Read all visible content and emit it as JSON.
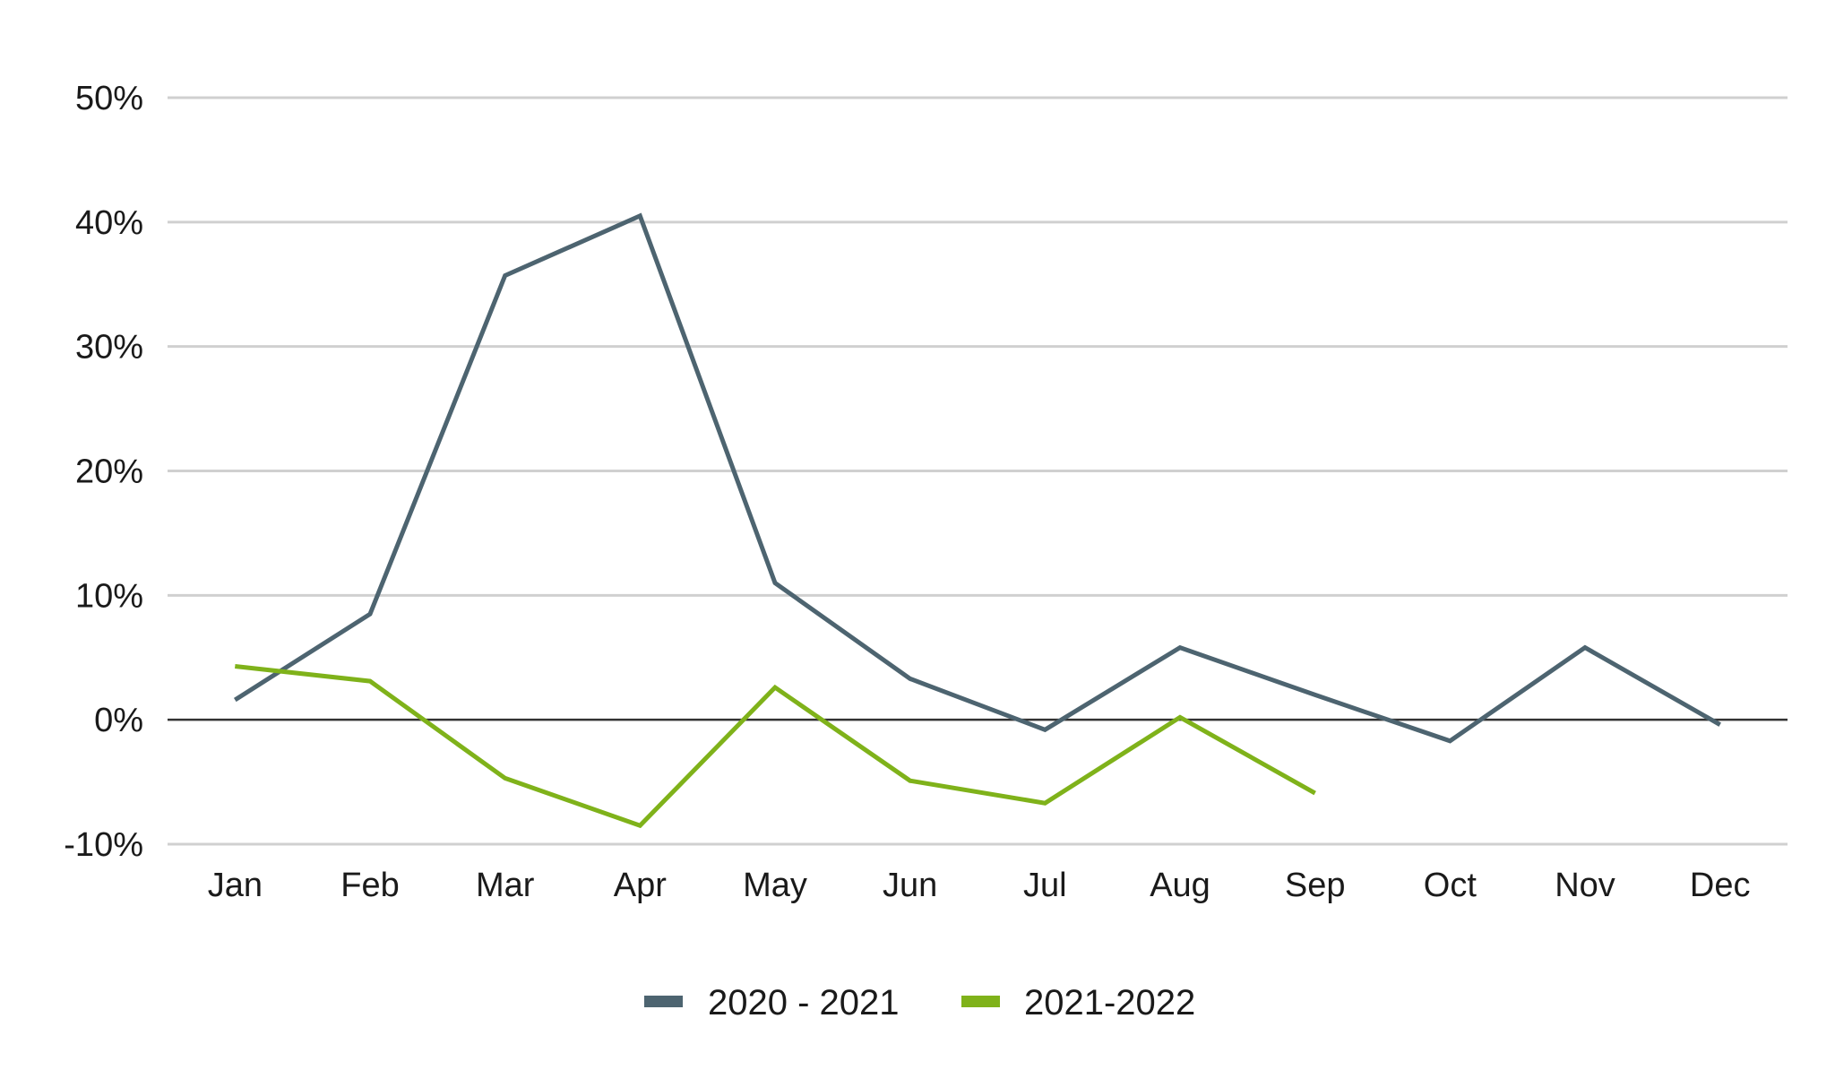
{
  "chart_data": {
    "type": "line",
    "categories": [
      "Jan",
      "Feb",
      "Mar",
      "Apr",
      "May",
      "Jun",
      "Jul",
      "Aug",
      "Sep",
      "Oct",
      "Nov",
      "Dec"
    ],
    "y_ticks": [
      "-10%",
      "0%",
      "10%",
      "20%",
      "30%",
      "40%",
      "50%"
    ],
    "y_tick_values": [
      -10,
      0,
      10,
      20,
      30,
      40,
      50
    ],
    "ylim": [
      -10,
      50
    ],
    "grid": true,
    "legend_position": "bottom-center",
    "series": [
      {
        "name": "2020 - 2021",
        "color": "#4d6470",
        "values": [
          1.6,
          8.5,
          35.7,
          40.5,
          11.0,
          3.3,
          -0.8,
          5.8,
          2.0,
          -1.7,
          5.8,
          -0.4
        ]
      },
      {
        "name": "2021-2022",
        "color": "#7fb21a",
        "values": [
          4.3,
          3.1,
          -4.7,
          -8.5,
          2.6,
          -4.9,
          -6.7,
          0.2,
          -5.9,
          null,
          null,
          null
        ]
      }
    ]
  }
}
